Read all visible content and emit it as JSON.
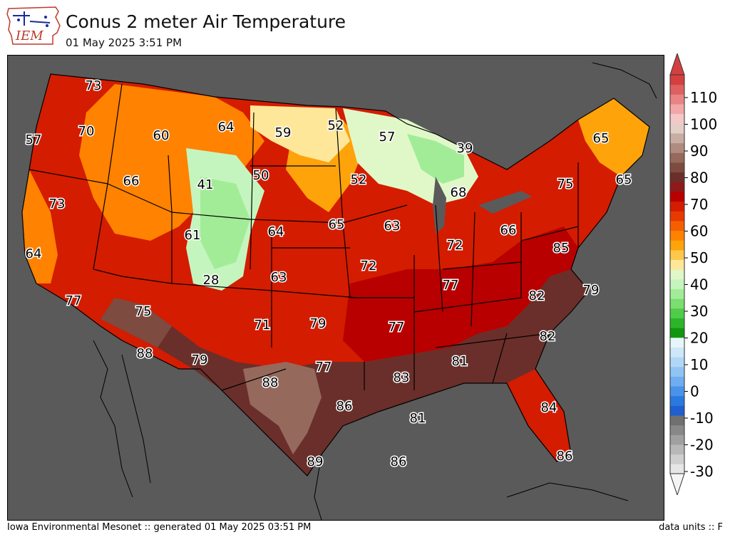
{
  "header": {
    "logo_text": "IEM",
    "title": "Conus 2 meter Air Temperature",
    "subtitle": "01 May 2025 3:51 PM"
  },
  "footer": {
    "credit": "Iowa Environmental Mesonet :: generated 01 May 2025 03:51 PM",
    "units": "data units :: F"
  },
  "colorbar": {
    "ticks": [
      "110",
      "100",
      "90",
      "80",
      "70",
      "60",
      "50",
      "40",
      "30",
      "20",
      "10",
      "0",
      "-10",
      "-20",
      "-30"
    ],
    "bands": [
      "#e6e6e6",
      "#cfcfcf",
      "#b8b8b8",
      "#a0a0a0",
      "#888888",
      "#707070",
      "#1f5fcf",
      "#2a79e0",
      "#4a93ea",
      "#6eaef0",
      "#90c4f3",
      "#b0d8f6",
      "#cde8f8",
      "#e6f6fa",
      "#13960f",
      "#2db52a",
      "#4fcc4a",
      "#7ade70",
      "#a2ec98",
      "#c5f5be",
      "#e0f8c8",
      "#ffe79a",
      "#ffc84d",
      "#ffa30a",
      "#ff8200",
      "#f55f00",
      "#e83900",
      "#d41c00",
      "#b80000",
      "#8e1a1a",
      "#6a2f2a",
      "#7e4b40",
      "#96695d",
      "#b08c80",
      "#c8ada2",
      "#e2cfc8",
      "#f5c8c8",
      "#f3a8a8",
      "#e98484",
      "#df6060",
      "#d44040"
    ]
  },
  "stations": [
    {
      "v": "73"
    },
    {
      "v": "57"
    },
    {
      "v": "70"
    },
    {
      "v": "60"
    },
    {
      "v": "64"
    },
    {
      "v": "59"
    },
    {
      "v": "52"
    },
    {
      "v": "57"
    },
    {
      "v": "39"
    },
    {
      "v": "65"
    },
    {
      "v": "66"
    },
    {
      "v": "41"
    },
    {
      "v": "50"
    },
    {
      "v": "52"
    },
    {
      "v": "68"
    },
    {
      "v": "75"
    },
    {
      "v": "65"
    },
    {
      "v": "73"
    },
    {
      "v": "61"
    },
    {
      "v": "64"
    },
    {
      "v": "65"
    },
    {
      "v": "63"
    },
    {
      "v": "72"
    },
    {
      "v": "66"
    },
    {
      "v": "85"
    },
    {
      "v": "64"
    },
    {
      "v": "28"
    },
    {
      "v": "63"
    },
    {
      "v": "72"
    },
    {
      "v": "77"
    },
    {
      "v": "77"
    },
    {
      "v": "75"
    },
    {
      "v": "79"
    },
    {
      "v": "82"
    },
    {
      "v": "79"
    },
    {
      "v": "71"
    },
    {
      "v": "77"
    },
    {
      "v": "82"
    },
    {
      "v": "88"
    },
    {
      "v": "79"
    },
    {
      "v": "77"
    },
    {
      "v": "81"
    },
    {
      "v": "88"
    },
    {
      "v": "83"
    },
    {
      "v": "86"
    },
    {
      "v": "84"
    },
    {
      "v": "81"
    },
    {
      "v": "89"
    },
    {
      "v": "86"
    },
    {
      "v": "86"
    }
  ],
  "colors": {
    "background": "#5a5a5a",
    "hot": "#6a2f2a",
    "warm": "#d41c00",
    "mild": "#ff8200",
    "cool": "#a2ec98"
  }
}
